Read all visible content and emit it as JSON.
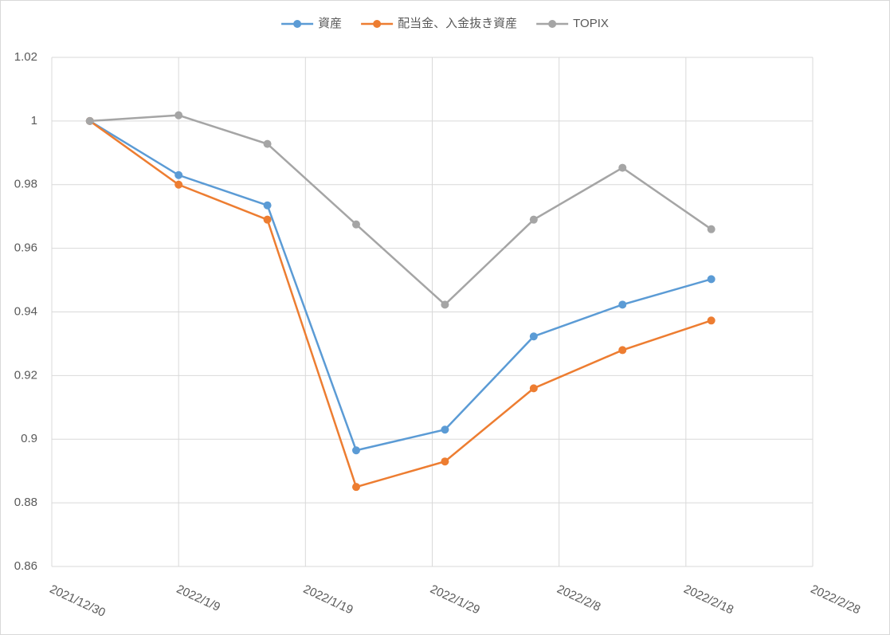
{
  "chart_data": {
    "type": "line",
    "x": [
      "2022/1/2",
      "2022/1/9",
      "2022/1/16",
      "2022/1/23",
      "2022/1/30",
      "2022/2/6",
      "2022/2/13",
      "2022/2/20"
    ],
    "series": [
      {
        "name": "資産",
        "color": "#5b9bd5",
        "values": [
          1,
          0.983,
          0.9735,
          0.8965,
          0.903,
          0.9323,
          0.9423,
          0.9503
        ]
      },
      {
        "name": "配当金、入金抜き資産",
        "color": "#ed7d31",
        "values": [
          1,
          0.98,
          0.969,
          0.885,
          0.893,
          0.916,
          0.928,
          0.9373
        ]
      },
      {
        "name": "TOPIX",
        "color": "#a5a5a5",
        "values": [
          1,
          1.0018,
          0.9928,
          0.9675,
          0.9423,
          0.969,
          0.9853,
          0.966
        ]
      }
    ],
    "xlim": [
      "2021/12/30",
      "2022/2/28"
    ],
    "xticks": [
      "2021/12/30",
      "2022/1/9",
      "2022/1/19",
      "2022/1/29",
      "2022/2/8",
      "2022/2/18",
      "2022/2/28"
    ],
    "ylim": [
      0.86,
      1.02
    ],
    "yticks": [
      0.86,
      0.88,
      0.9,
      0.92,
      0.94,
      0.96,
      0.98,
      1,
      1.02
    ],
    "grid": true,
    "legend": "top"
  }
}
